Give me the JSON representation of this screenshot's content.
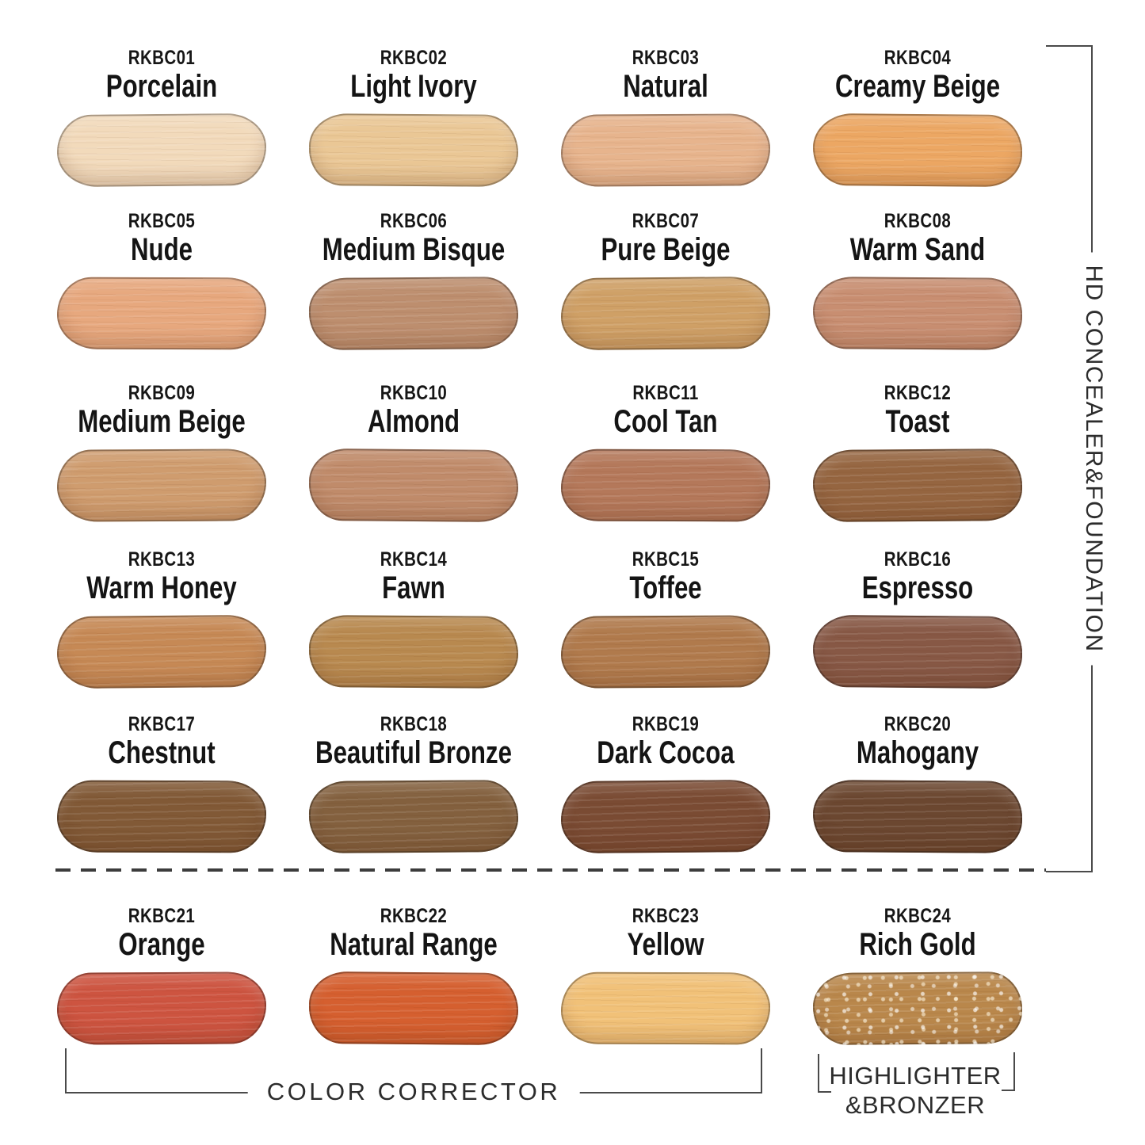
{
  "groups": {
    "side_label": "HD CONCEALER&FOUNDATION",
    "color_corrector_label": "COLOR CORRECTOR",
    "highlighter_label_line1": "HIGHLIGHTER",
    "highlighter_label_line2": "&BRONZER"
  },
  "colors": {
    "background": "#ffffff",
    "text": "#161616",
    "bracket_line": "#4a4a4a"
  },
  "shades": [
    {
      "code": "RKBC01",
      "name": "Porcelain",
      "color": "#f2dabb"
    },
    {
      "code": "RKBC02",
      "name": "Light Ivory",
      "color": "#eac795"
    },
    {
      "code": "RKBC03",
      "name": "Natural",
      "color": "#e7b48d"
    },
    {
      "code": "RKBC04",
      "name": "Creamy Beige",
      "color": "#eca763"
    },
    {
      "code": "RKBC05",
      "name": "Nude",
      "color": "#e7a87e"
    },
    {
      "code": "RKBC06",
      "name": "Medium Bisque",
      "color": "#bd8e6e"
    },
    {
      "code": "RKBC07",
      "name": "Pure Beige",
      "color": "#cfa066"
    },
    {
      "code": "RKBC08",
      "name": "Warm Sand",
      "color": "#c88e71"
    },
    {
      "code": "RKBC09",
      "name": "Medium Beige",
      "color": "#cf9c6e"
    },
    {
      "code": "RKBC10",
      "name": "Almond",
      "color": "#c08b6a"
    },
    {
      "code": "RKBC11",
      "name": "Cool Tan",
      "color": "#b4785a"
    },
    {
      "code": "RKBC12",
      "name": "Toast",
      "color": "#956540"
    },
    {
      "code": "RKBC13",
      "name": "Warm Honey",
      "color": "#c68955"
    },
    {
      "code": "RKBC14",
      "name": "Fawn",
      "color": "#b8894f"
    },
    {
      "code": "RKBC15",
      "name": "Toffee",
      "color": "#b07a4c"
    },
    {
      "code": "RKBC16",
      "name": "Espresso",
      "color": "#875845"
    },
    {
      "code": "RKBC17",
      "name": "Chestnut",
      "color": "#815936"
    },
    {
      "code": "RKBC18",
      "name": "Beautiful Bronze",
      "color": "#83603e"
    },
    {
      "code": "RKBC19",
      "name": "Dark Cocoa",
      "color": "#7a4b33"
    },
    {
      "code": "RKBC20",
      "name": "Mahogany",
      "color": "#6b4730"
    },
    {
      "code": "RKBC21",
      "name": "Orange",
      "color": "#cd5440"
    },
    {
      "code": "RKBC22",
      "name": "Natural Range",
      "color": "#d55f2f"
    },
    {
      "code": "RKBC23",
      "name": "Yellow",
      "color": "#f1c178"
    },
    {
      "code": "RKBC24",
      "name": "Rich Gold",
      "color": "#b9874b",
      "effect": "shimmer"
    }
  ]
}
